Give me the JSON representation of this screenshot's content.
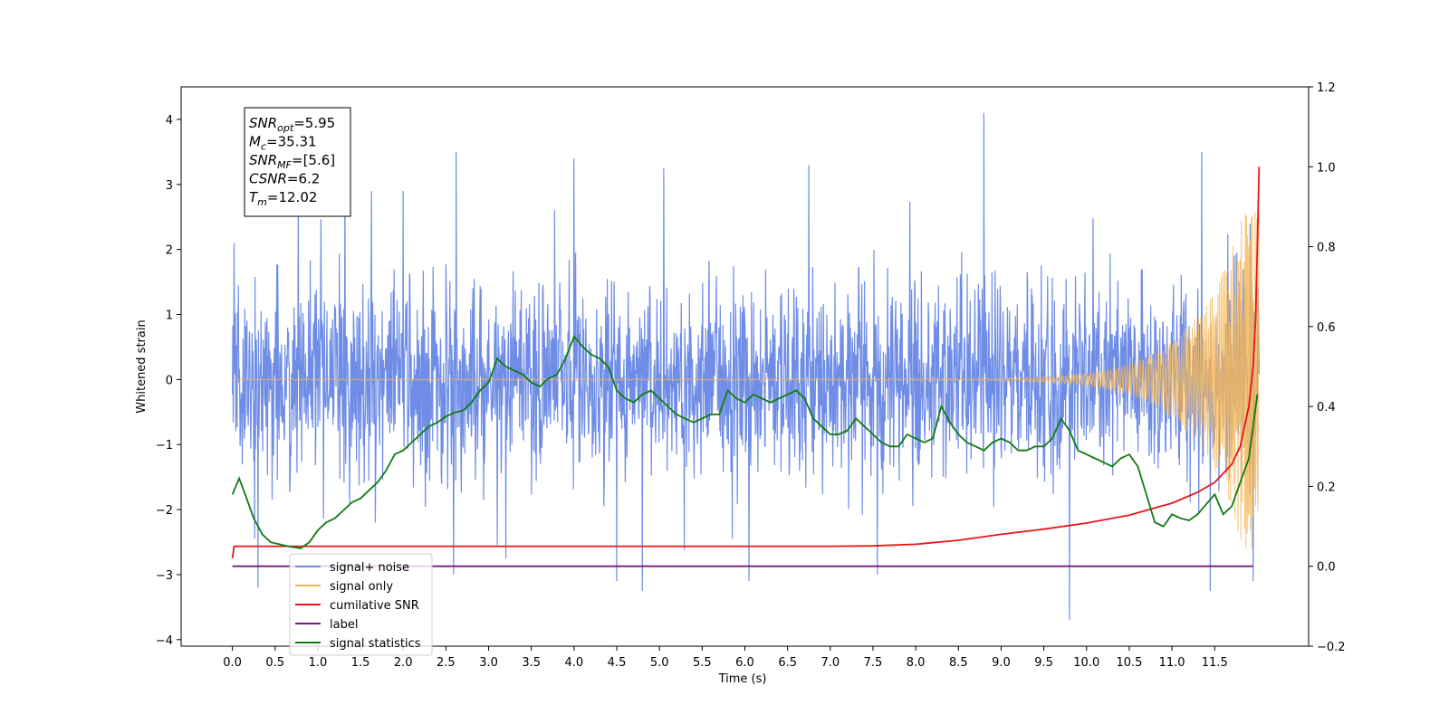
{
  "chart_data": {
    "type": "line",
    "xlabel": "Time (s)",
    "ylabel": "Whitened strain",
    "xlim": [
      -0.6,
      12.6
    ],
    "ylim": [
      -4.1,
      4.5
    ],
    "y2lim": [
      -0.2,
      1.2
    ],
    "xticks": [
      "0.0",
      "0.5",
      "1.0",
      "1.5",
      "2.0",
      "2.5",
      "3.0",
      "3.5",
      "4.0",
      "4.5",
      "5.0",
      "5.5",
      "6.0",
      "6.5",
      "7.0",
      "7.5",
      "8.0",
      "8.5",
      "9.0",
      "9.5",
      "10.0",
      "10.5",
      "11.0",
      "11.5"
    ],
    "yticks": [
      "−4",
      "−3",
      "−2",
      "−1",
      "0",
      "1",
      "2",
      "3",
      "4"
    ],
    "y2ticks": [
      "−0.2",
      "0.0",
      "0.2",
      "0.4",
      "0.6",
      "0.8",
      "1.0",
      "1.2"
    ],
    "legend_position": "lower-left",
    "legend": [
      {
        "label": "signal+ noise",
        "color": "#6f8de6"
      },
      {
        "label": "signal only",
        "color": "#f5b759"
      },
      {
        "label": "cumilative SNR",
        "color": "#e8161a"
      },
      {
        "label": "label",
        "color": "#7b1683"
      },
      {
        "label": "signal statistics",
        "color": "#117a11"
      }
    ],
    "annotation": [
      {
        "sym": "SNR",
        "sub": "opt",
        "value": "=5.95"
      },
      {
        "sym": "M",
        "sub": "c",
        "value": "=35.31"
      },
      {
        "sym": "SNR",
        "sub": "MF",
        "value": "=[5.6]"
      },
      {
        "sym": "CSNR",
        "sub": "",
        "value": "=6.2"
      },
      {
        "sym": "T",
        "sub": "m",
        "value": "=12.02"
      }
    ],
    "series": [
      {
        "name": "signal+ noise",
        "axis": "left",
        "color": "#6f8de6",
        "style": "noise",
        "x_range": [
          0.0,
          12.02
        ],
        "spread": 0.75,
        "peaks": [
          [
            0.02,
            2.1
          ],
          [
            0.3,
            -3.2
          ],
          [
            0.77,
            2.9
          ],
          [
            1.32,
            3.0
          ],
          [
            1.63,
            2.9
          ],
          [
            2.0,
            2.9
          ],
          [
            2.62,
            3.5
          ],
          [
            3.2,
            -2.75
          ],
          [
            4.0,
            3.4
          ],
          [
            4.5,
            -3.1
          ],
          [
            4.8,
            -3.25
          ],
          [
            5.05,
            3.25
          ],
          [
            6.05,
            -3.1
          ],
          [
            6.75,
            3.3
          ],
          [
            7.55,
            -3.0
          ],
          [
            8.8,
            4.1
          ],
          [
            9.8,
            -3.7
          ],
          [
            11.35,
            3.5
          ],
          [
            11.45,
            -3.25
          ],
          [
            11.95,
            -3.1
          ]
        ]
      },
      {
        "name": "signal only",
        "axis": "left",
        "color": "#f5b759",
        "style": "chirp",
        "x_range": [
          0.0,
          12.02
        ],
        "amplitude_end": 2.6
      },
      {
        "name": "cumilative SNR",
        "axis": "right",
        "color": "#e8161a",
        "x": [
          0.0,
          0.02,
          0.04,
          1.0,
          3.0,
          5.0,
          7.0,
          7.5,
          8.0,
          8.5,
          9.0,
          9.5,
          10.0,
          10.5,
          11.0,
          11.3,
          11.5,
          11.7,
          11.8,
          11.9,
          11.95,
          11.98,
          12.0,
          12.02
        ],
        "values": [
          0.02,
          0.05,
          0.05,
          0.05,
          0.05,
          0.05,
          0.05,
          0.051,
          0.055,
          0.065,
          0.08,
          0.093,
          0.108,
          0.128,
          0.158,
          0.185,
          0.21,
          0.255,
          0.3,
          0.4,
          0.5,
          0.62,
          0.8,
          1.0
        ]
      },
      {
        "name": "label",
        "axis": "right",
        "color": "#7b1683",
        "x": [
          0.0,
          11.95
        ],
        "values": [
          0.0,
          0.0
        ]
      },
      {
        "name": "signal statistics",
        "axis": "right",
        "color": "#117a11",
        "x": [
          0.0,
          0.08,
          0.15,
          0.25,
          0.35,
          0.45,
          0.55,
          0.65,
          0.8,
          0.9,
          1.0,
          1.1,
          1.2,
          1.3,
          1.4,
          1.5,
          1.6,
          1.7,
          1.8,
          1.9,
          2.0,
          2.1,
          2.2,
          2.3,
          2.4,
          2.5,
          2.6,
          2.7,
          2.8,
          2.9,
          3.0,
          3.1,
          3.2,
          3.3,
          3.4,
          3.5,
          3.6,
          3.7,
          3.8,
          3.9,
          4.0,
          4.1,
          4.2,
          4.3,
          4.4,
          4.5,
          4.6,
          4.7,
          4.8,
          4.9,
          5.0,
          5.1,
          5.2,
          5.3,
          5.4,
          5.5,
          5.6,
          5.7,
          5.8,
          5.9,
          6.0,
          6.1,
          6.2,
          6.3,
          6.4,
          6.5,
          6.6,
          6.7,
          6.8,
          6.9,
          7.0,
          7.1,
          7.2,
          7.3,
          7.4,
          7.5,
          7.6,
          7.7,
          7.8,
          7.9,
          8.0,
          8.1,
          8.2,
          8.3,
          8.4,
          8.5,
          8.6,
          8.7,
          8.8,
          8.9,
          9.0,
          9.1,
          9.2,
          9.3,
          9.4,
          9.5,
          9.6,
          9.7,
          9.8,
          9.9,
          10.0,
          10.1,
          10.2,
          10.3,
          10.4,
          10.5,
          10.6,
          10.7,
          10.8,
          10.9,
          11.0,
          11.1,
          11.2,
          11.3,
          11.4,
          11.5,
          11.6,
          11.7,
          11.8,
          11.9,
          12.0
        ],
        "values": [
          0.18,
          0.22,
          0.18,
          0.12,
          0.08,
          0.06,
          0.055,
          0.05,
          0.045,
          0.06,
          0.09,
          0.11,
          0.12,
          0.14,
          0.16,
          0.17,
          0.19,
          0.21,
          0.24,
          0.28,
          0.29,
          0.31,
          0.33,
          0.35,
          0.36,
          0.375,
          0.385,
          0.39,
          0.41,
          0.44,
          0.46,
          0.52,
          0.5,
          0.49,
          0.48,
          0.46,
          0.45,
          0.47,
          0.48,
          0.52,
          0.575,
          0.55,
          0.53,
          0.52,
          0.5,
          0.44,
          0.42,
          0.41,
          0.43,
          0.44,
          0.42,
          0.4,
          0.38,
          0.37,
          0.36,
          0.37,
          0.38,
          0.38,
          0.44,
          0.42,
          0.41,
          0.43,
          0.42,
          0.41,
          0.42,
          0.43,
          0.44,
          0.42,
          0.37,
          0.35,
          0.33,
          0.33,
          0.34,
          0.37,
          0.35,
          0.33,
          0.31,
          0.3,
          0.3,
          0.33,
          0.32,
          0.31,
          0.32,
          0.4,
          0.36,
          0.33,
          0.31,
          0.3,
          0.29,
          0.31,
          0.32,
          0.31,
          0.29,
          0.29,
          0.3,
          0.3,
          0.32,
          0.37,
          0.34,
          0.29,
          0.28,
          0.27,
          0.26,
          0.25,
          0.27,
          0.28,
          0.25,
          0.18,
          0.11,
          0.1,
          0.13,
          0.12,
          0.115,
          0.13,
          0.155,
          0.18,
          0.13,
          0.15,
          0.21,
          0.27,
          0.43
        ]
      }
    ]
  }
}
